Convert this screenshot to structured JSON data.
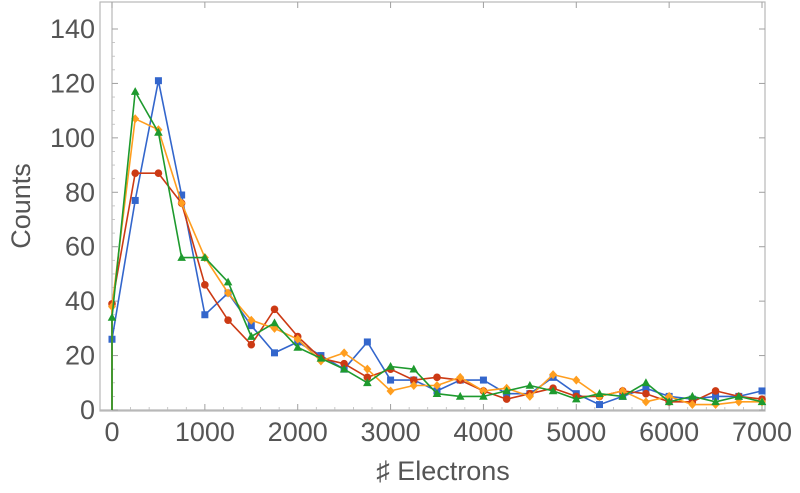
{
  "chart_data": {
    "type": "line",
    "xlabel": "♯ Electrons",
    "ylabel": "Counts",
    "xlim": [
      0,
      7000
    ],
    "ylim": [
      0,
      140
    ],
    "xticks": [
      "0",
      "1000",
      "2000",
      "3000",
      "4000",
      "5000",
      "6000",
      "7000"
    ],
    "yticks": [
      "0",
      "20",
      "40",
      "60",
      "80",
      "100",
      "120",
      "140"
    ],
    "grid": false,
    "x": [
      0,
      250,
      500,
      750,
      1000,
      1250,
      1500,
      1750,
      2000,
      2250,
      2500,
      2750,
      3000,
      3250,
      3500,
      3750,
      4000,
      4250,
      4500,
      4750,
      5000,
      5250,
      5500,
      5750,
      6000,
      6250,
      6500,
      6750,
      7000
    ],
    "series": [
      {
        "color": "#3366cc",
        "marker": "square",
        "values": [
          26,
          77,
          121,
          79,
          35,
          43,
          31,
          21,
          25,
          20,
          15,
          25,
          11,
          11,
          7,
          11,
          11,
          6,
          6,
          12,
          6,
          2,
          5,
          8,
          5,
          4,
          5,
          5,
          7
        ]
      },
      {
        "color": "#cc3a14",
        "marker": "circle",
        "values": [
          39,
          87,
          87,
          76,
          46,
          33,
          24,
          37,
          27,
          19,
          17,
          12,
          15,
          11,
          12,
          11,
          7,
          4,
          6,
          8,
          5,
          5,
          7,
          6,
          3,
          3,
          7,
          5,
          4
        ]
      },
      {
        "color": "#ff9e1f",
        "marker": "diamond",
        "values": [
          38,
          107,
          103,
          76,
          56,
          43,
          33,
          30,
          26,
          18,
          21,
          15,
          7,
          9,
          9,
          12,
          7,
          8,
          5,
          13,
          11,
          5,
          7,
          3,
          5,
          2,
          2,
          3,
          3
        ]
      },
      {
        "color": "#1e9a2e",
        "marker": "triangle",
        "values": [
          34,
          117,
          102,
          56,
          56,
          47,
          27,
          32,
          23,
          19,
          15,
          10,
          16,
          15,
          6,
          5,
          5,
          7,
          9,
          7,
          4,
          6,
          5,
          10,
          3,
          5,
          3,
          5,
          3
        ]
      }
    ]
  }
}
